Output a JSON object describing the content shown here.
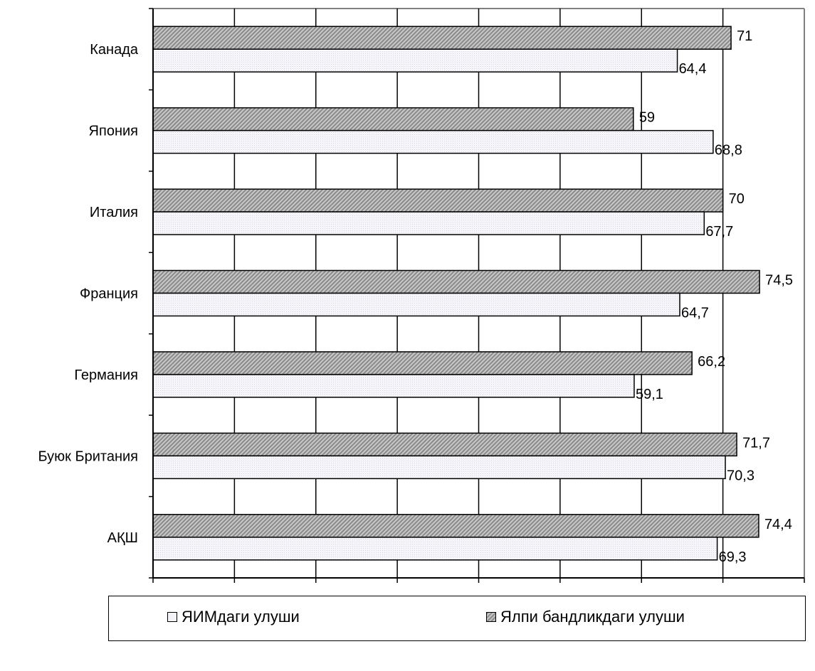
{
  "chart_data": {
    "type": "bar",
    "orientation": "horizontal",
    "categories": [
      "Канада",
      "Япония",
      "Италия",
      "Франция",
      "Германия",
      "Буюк Британия",
      "АҚШ"
    ],
    "series": [
      {
        "name": "Ялпи бандликдаги улуши",
        "values": [
          71,
          59,
          70,
          74.5,
          66.2,
          71.7,
          74.4
        ],
        "labels": [
          "71",
          "59",
          "70",
          "74,5",
          "66,2",
          "71,7",
          "74,4"
        ],
        "color": "#a8a8a8"
      },
      {
        "name": "ЯИМдаги улуши",
        "values": [
          64.4,
          68.8,
          67.7,
          64.7,
          59.1,
          70.3,
          69.3
        ],
        "labels": [
          "64,4",
          "68,8",
          "67,7",
          "64,7",
          "59,1",
          "70,3",
          "69,3"
        ],
        "color": "#f4f4f8"
      }
    ],
    "xlim": [
      0,
      80
    ],
    "xticks": [
      "0",
      "10",
      "20",
      "30",
      "40",
      "50",
      "60",
      "70",
      "80"
    ],
    "grid": true,
    "legend_position": "bottom"
  },
  "legend": {
    "items": [
      {
        "label": "ЯИМдаги улуши"
      },
      {
        "label": "Ялпи бандликдаги улуши"
      }
    ]
  }
}
